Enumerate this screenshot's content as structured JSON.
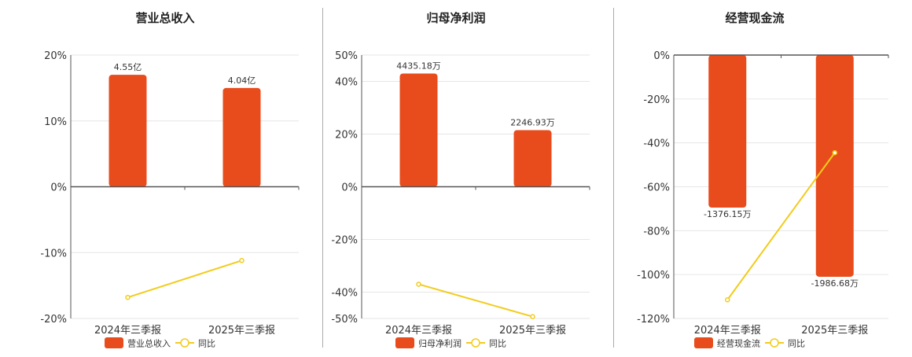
{
  "legend_series_label": "同比",
  "colors": {
    "bar": "#E84C1C",
    "line": "#F2CC1C",
    "grid": "#E6E6E6",
    "axis": "#555555",
    "divider": "#AAAAAA"
  },
  "chart_data": [
    {
      "type": "bar",
      "title": "营业总收入",
      "categories": [
        "2024年三季报",
        "2025年三季报"
      ],
      "ylim": [
        -20,
        20
      ],
      "yticks": [
        20,
        10,
        0,
        -10,
        -20
      ],
      "ytick_labels": [
        "20%",
        "10%",
        "0%",
        "-10%",
        "-20%"
      ],
      "series": [
        {
          "name": "营业总收入",
          "kind": "bar",
          "values": [
            17,
            15
          ],
          "labels": [
            "4.55亿",
            "4.04亿"
          ]
        },
        {
          "name": "同比",
          "kind": "line",
          "values": [
            -16.8,
            -11.2
          ]
        }
      ],
      "grid": true,
      "legend": "bottom"
    },
    {
      "type": "bar",
      "title": "归母净利润",
      "categories": [
        "2024年三季报",
        "2025年三季报"
      ],
      "ylim": [
        -50,
        50
      ],
      "yticks": [
        50,
        40,
        20,
        0,
        -20,
        -40,
        -50
      ],
      "ytick_labels": [
        "50%",
        "40%",
        "20%",
        "0%",
        "-20%",
        "-40%",
        "-50%"
      ],
      "series": [
        {
          "name": "归母净利润",
          "kind": "bar",
          "values": [
            43,
            21.5
          ],
          "labels": [
            "4435.18万",
            "2246.93万"
          ]
        },
        {
          "name": "同比",
          "kind": "line",
          "values": [
            -37,
            -49.3
          ]
        }
      ],
      "grid": true,
      "legend": "bottom"
    },
    {
      "type": "bar",
      "title": "经营现金流",
      "categories": [
        "2024年三季报",
        "2025年三季报"
      ],
      "ylim": [
        -120,
        0
      ],
      "yticks": [
        0,
        -20,
        -40,
        -60,
        -80,
        -100,
        -120
      ],
      "ytick_labels": [
        "0%",
        "-20%",
        "-40%",
        "-60%",
        "-80%",
        "-100%",
        "-120%"
      ],
      "series": [
        {
          "name": "经营现金流",
          "kind": "bar",
          "values": [
            -69.5,
            -101
          ],
          "labels": [
            "-1376.15万",
            "-1986.68万"
          ]
        },
        {
          "name": "同比",
          "kind": "line",
          "values": [
            -111.5,
            -44.5
          ]
        }
      ],
      "grid": true,
      "legend": "bottom"
    }
  ]
}
